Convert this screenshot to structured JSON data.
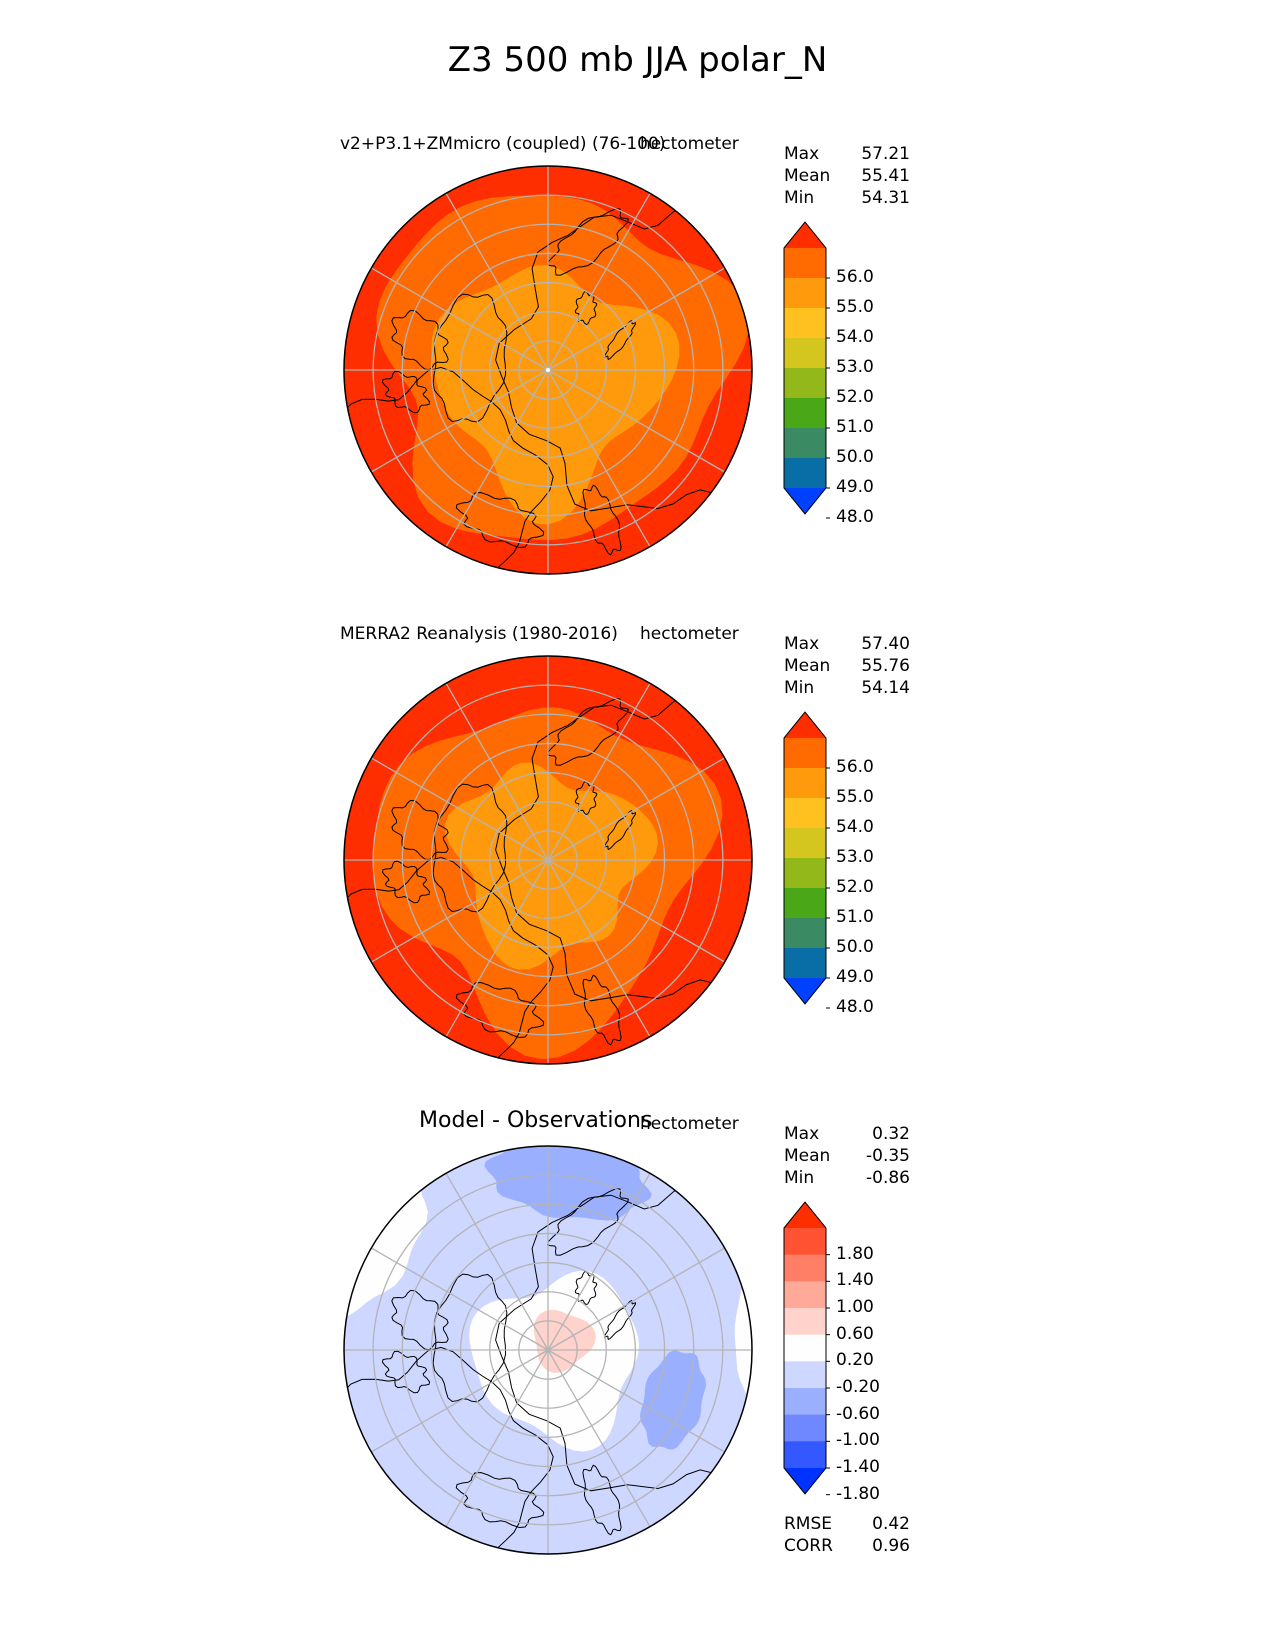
{
  "title": "Z3 500 mb JJA polar_N",
  "colors": {
    "abs_bins": [
      "#0040ff",
      "#0a6ea6",
      "#3a8a64",
      "#4aa818",
      "#92b81a",
      "#d4c61f",
      "#ffc11f",
      "#ff9a0c",
      "#ff6b00",
      "#ff2e00"
    ],
    "diff_bins": [
      "#0033ff",
      "#3358ff",
      "#6f88ff",
      "#9ab0ff",
      "#cdd7ff",
      "#fefefe",
      "#ffd2cc",
      "#ffaa99",
      "#ff7f66",
      "#ff5233",
      "#ff2e00"
    ],
    "coast": "#000000",
    "grid": "#b4b4b4"
  },
  "panels": [
    {
      "title": "v2+P3.1+ZMmicro (coupled) (76-100)",
      "units": "hectometer",
      "stats": [
        {
          "label": "Max",
          "value": "57.21"
        },
        {
          "label": "Mean",
          "value": "55.41"
        },
        {
          "label": "Min",
          "value": "54.31"
        }
      ],
      "colorbar_ticks": [
        "56.0",
        "55.0",
        "54.0",
        "53.0",
        "52.0",
        "51.0",
        "50.0",
        "49.0",
        "48.0"
      ]
    },
    {
      "title": "MERRA2 Reanalysis (1980-2016)",
      "units": "hectometer",
      "stats": [
        {
          "label": "Max",
          "value": "57.40"
        },
        {
          "label": "Mean",
          "value": "55.76"
        },
        {
          "label": "Min",
          "value": "54.14"
        }
      ],
      "colorbar_ticks": [
        "56.0",
        "55.0",
        "54.0",
        "53.0",
        "52.0",
        "51.0",
        "50.0",
        "49.0",
        "48.0"
      ]
    },
    {
      "title": "Model - Observations",
      "units": "hectometer",
      "stats": [
        {
          "label": "Max",
          "value": "0.32"
        },
        {
          "label": "Mean",
          "value": "-0.35"
        },
        {
          "label": "Min",
          "value": "-0.86"
        }
      ],
      "colorbar_ticks": [
        "1.80",
        "1.40",
        "1.00",
        "0.60",
        "0.20",
        "-0.20",
        "-0.60",
        "-1.00",
        "-1.40",
        "-1.80"
      ],
      "metrics": [
        {
          "label": "RMSE",
          "value": "0.42"
        },
        {
          "label": "CORR",
          "value": "0.96"
        }
      ]
    }
  ],
  "chart_data": [
    {
      "type": "heatmap",
      "projection": "north polar stereographic",
      "title": "v2+P3.1+ZMmicro (coupled) (76-100)",
      "units": "hectometer",
      "contour_levels": [
        48,
        49,
        50,
        51,
        52,
        53,
        54,
        55,
        56
      ],
      "extend": "both",
      "summary": {
        "max": 57.21,
        "mean": 55.41,
        "min": 54.31
      }
    },
    {
      "type": "heatmap",
      "projection": "north polar stereographic",
      "title": "MERRA2 Reanalysis (1980-2016)",
      "units": "hectometer",
      "contour_levels": [
        48,
        49,
        50,
        51,
        52,
        53,
        54,
        55,
        56
      ],
      "extend": "both",
      "summary": {
        "max": 57.4,
        "mean": 55.76,
        "min": 54.14
      }
    },
    {
      "type": "heatmap",
      "projection": "north polar stereographic",
      "title": "Model - Observations",
      "units": "hectometer",
      "contour_levels": [
        -1.8,
        -1.4,
        -1.0,
        -0.6,
        -0.2,
        0.2,
        0.6,
        1.0,
        1.4,
        1.8
      ],
      "extend": "both",
      "summary": {
        "max": 0.32,
        "mean": -0.35,
        "min": -0.86,
        "rmse": 0.42,
        "corr": 0.96
      }
    }
  ]
}
